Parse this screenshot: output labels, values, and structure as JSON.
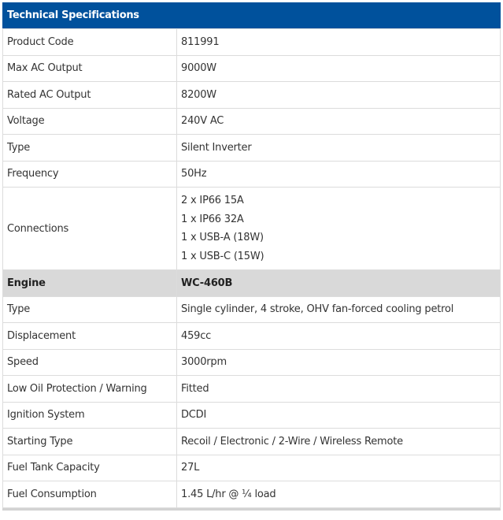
{
  "title": "Technical Specifications",
  "rows": [
    {
      "label": "Product Code",
      "value": "811991"
    },
    {
      "label": "Max AC Output",
      "value": "9000W"
    },
    {
      "label": "Rated AC Output",
      "value": "8200W"
    },
    {
      "label": "Voltage",
      "value": "240V AC"
    },
    {
      "label": "Type",
      "value": "Silent Inverter"
    },
    {
      "label": "Frequency",
      "value": "50Hz"
    }
  ],
  "connections": {
    "label": "Connections",
    "values": [
      "2 x IP66 15A",
      "1 x IP66 32A",
      "1 x USB-A (18W)",
      "1 x USB-C (15W)"
    ]
  },
  "engine": {
    "label": "Engine",
    "value": "WC-460B"
  },
  "engine_rows": [
    {
      "label": "Type",
      "value": "Single cylinder, 4 stroke, OHV fan-forced cooling petrol"
    },
    {
      "label": "Displacement",
      "value": "459cc"
    },
    {
      "label": "Speed",
      "value": "3000rpm"
    },
    {
      "label": "Low Oil Protection / Warning",
      "value": "Fitted"
    },
    {
      "label": "Ignition System",
      "value": "DCDI"
    },
    {
      "label": "Starting Type",
      "value": "Recoil / Electronic / 2-Wire / Wireless Remote"
    },
    {
      "label": "Fuel Tank Capacity",
      "value": "27L"
    },
    {
      "label": "Fuel Consumption",
      "value": "1.45 L/hr @ ¼ load"
    }
  ],
  "colors": {
    "header": "#00519c",
    "section": "#d9d9d9"
  }
}
